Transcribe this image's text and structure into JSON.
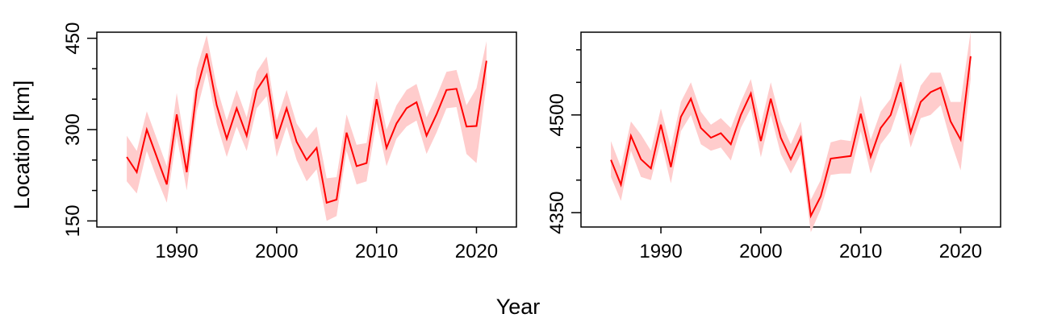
{
  "figure": {
    "xlabel": "Year",
    "ylabel": "Location [km]",
    "line_color": "#ff0000",
    "band_color": "#ffcccc"
  },
  "chart_data": [
    {
      "type": "line",
      "xlabel": "Year",
      "ylabel": "Location [km]",
      "xlim": [
        1982,
        2024
      ],
      "ylim": [
        140,
        460
      ],
      "xticks": [
        1990,
        2000,
        2010,
        2020
      ],
      "yticks": [
        150,
        300,
        450
      ],
      "yminor_ticks": [
        200,
        250,
        350,
        400
      ],
      "grid": false,
      "x": [
        1985,
        1986,
        1987,
        1988,
        1989,
        1990,
        1991,
        1992,
        1993,
        1994,
        1995,
        1996,
        1997,
        1998,
        1999,
        2000,
        2001,
        2002,
        2003,
        2004,
        2005,
        2006,
        2007,
        2008,
        2009,
        2010,
        2011,
        2012,
        2013,
        2014,
        2015,
        2016,
        2017,
        2018,
        2019,
        2020,
        2021
      ],
      "series": [
        {
          "values": [
            255,
            230,
            300,
            255,
            210,
            325,
            230,
            365,
            425,
            340,
            285,
            335,
            290,
            365,
            390,
            285,
            335,
            280,
            250,
            270,
            180,
            185,
            295,
            240,
            245,
            350,
            270,
            310,
            335,
            345,
            290,
            325,
            365,
            367,
            305,
            306,
            413
          ],
          "lower": [
            215,
            195,
            265,
            220,
            180,
            290,
            200,
            330,
            395,
            310,
            255,
            305,
            265,
            335,
            355,
            255,
            305,
            250,
            215,
            235,
            150,
            158,
            265,
            210,
            215,
            315,
            240,
            285,
            305,
            315,
            260,
            295,
            335,
            337,
            260,
            245,
            375
          ],
          "upper": [
            290,
            265,
            330,
            285,
            240,
            360,
            260,
            400,
            455,
            370,
            315,
            365,
            320,
            395,
            420,
            315,
            365,
            310,
            285,
            305,
            220,
            222,
            325,
            275,
            278,
            380,
            300,
            340,
            365,
            375,
            320,
            355,
            395,
            398,
            340,
            368,
            445
          ]
        }
      ]
    },
    {
      "type": "line",
      "xlabel": "Year",
      "ylabel": "",
      "xlim": [
        1982,
        2024
      ],
      "ylim": [
        4328,
        4627
      ],
      "xticks": [
        1990,
        2000,
        2010,
        2020
      ],
      "yticks": [
        4350,
        4500
      ],
      "yminor_ticks": [
        4400,
        4450,
        4550,
        4600
      ],
      "grid": false,
      "x": [
        1985,
        1986,
        1987,
        1988,
        1989,
        1990,
        1991,
        1992,
        1993,
        1994,
        1995,
        1996,
        1997,
        1998,
        1999,
        2000,
        2001,
        2002,
        2003,
        2004,
        2005,
        2006,
        2007,
        2008,
        2009,
        2010,
        2011,
        2012,
        2013,
        2014,
        2015,
        2016,
        2017,
        2018,
        2019,
        2020,
        2021
      ],
      "series": [
        {
          "values": [
            4431,
            4393,
            4468,
            4432,
            4418,
            4485,
            4420,
            4497,
            4525,
            4480,
            4465,
            4472,
            4455,
            4500,
            4533,
            4460,
            4525,
            4465,
            4432,
            4465,
            4345,
            4375,
            4433,
            4435,
            4437,
            4502,
            4436,
            4480,
            4500,
            4550,
            4473,
            4520,
            4535,
            4542,
            4490,
            4462,
            4590
          ],
          "lower": [
            4405,
            4368,
            4445,
            4405,
            4400,
            4460,
            4395,
            4475,
            4500,
            4455,
            4445,
            4450,
            4430,
            4480,
            4510,
            4435,
            4500,
            4440,
            4410,
            4440,
            4320,
            4355,
            4408,
            4410,
            4410,
            4475,
            4410,
            4455,
            4475,
            4520,
            4450,
            4495,
            4500,
            4515,
            4460,
            4415,
            4555
          ],
          "upper": [
            4460,
            4420,
            4490,
            4470,
            4445,
            4510,
            4450,
            4520,
            4550,
            4505,
            4485,
            4495,
            4480,
            4520,
            4555,
            4485,
            4550,
            4490,
            4455,
            4490,
            4370,
            4400,
            4458,
            4462,
            4460,
            4530,
            4462,
            4505,
            4525,
            4580,
            4495,
            4545,
            4565,
            4565,
            4520,
            4520,
            4628
          ]
        }
      ]
    }
  ]
}
